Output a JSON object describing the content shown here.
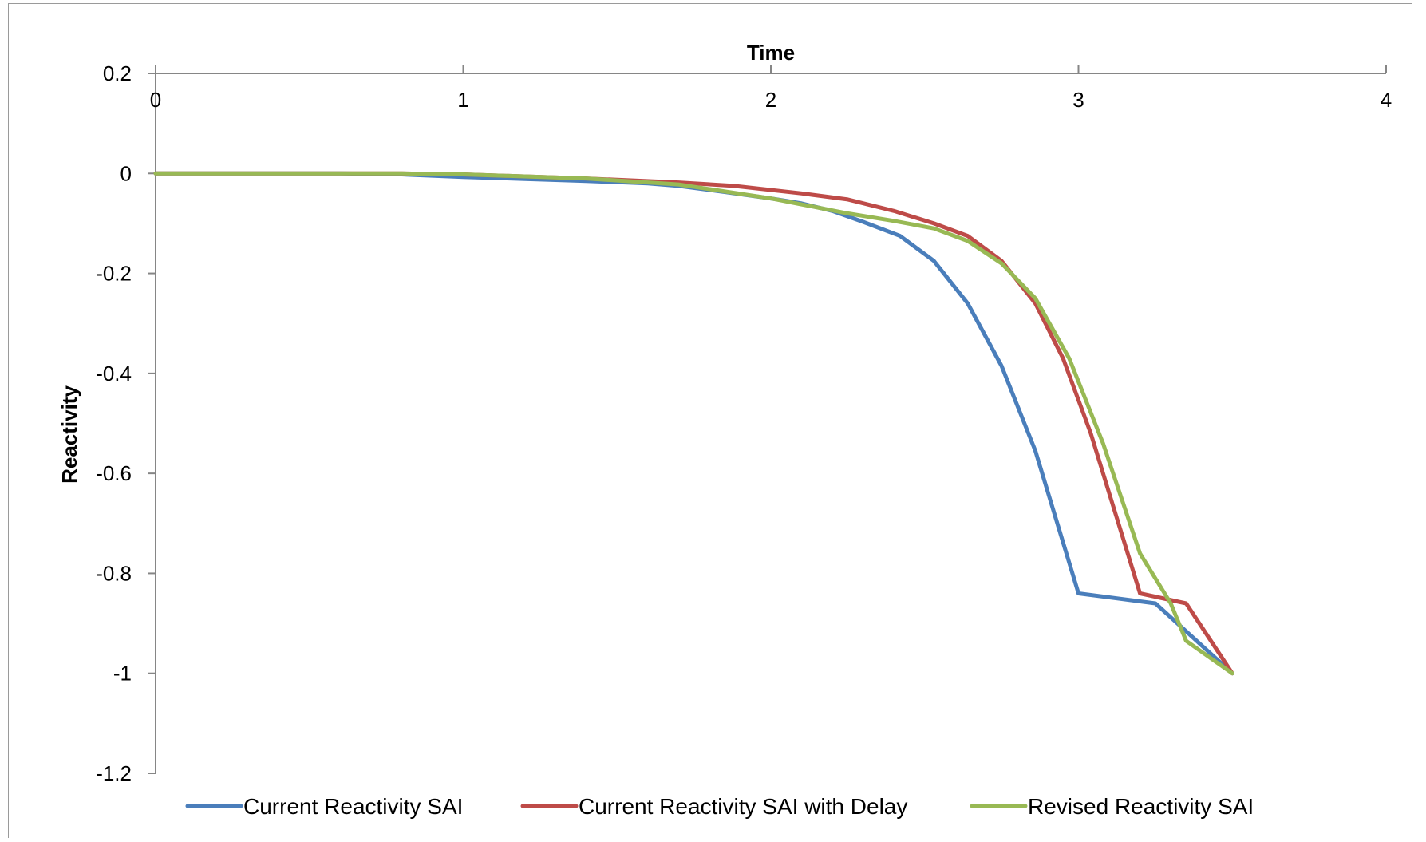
{
  "chart_data": {
    "type": "line",
    "title": "",
    "xlabel": "Time",
    "ylabel": "Reactivity",
    "xlim": [
      0,
      4
    ],
    "ylim": [
      -1.2,
      0.2
    ],
    "x_ticks": [
      0,
      1,
      2,
      3,
      4
    ],
    "y_ticks": [
      0.2,
      0,
      -0.2,
      -0.4,
      -0.6,
      -0.8,
      -1,
      -1.2
    ],
    "x_axis_position": "top",
    "grid": false,
    "legend_position": "bottom",
    "series": [
      {
        "name": "Current Reactivity SAI",
        "color": "#4a7ebb",
        "x": [
          0,
          0.6,
          0.8,
          1.0,
          1.2,
          1.4,
          1.6,
          1.7,
          1.85,
          2.0,
          2.1,
          2.2,
          2.3,
          2.42,
          2.53,
          2.64,
          2.75,
          2.86,
          3.0,
          3.25,
          3.5
        ],
        "y": [
          0,
          0,
          -0.002,
          -0.007,
          -0.011,
          -0.015,
          -0.02,
          -0.025,
          -0.037,
          -0.05,
          -0.06,
          -0.075,
          -0.097,
          -0.125,
          -0.175,
          -0.26,
          -0.385,
          -0.555,
          -0.84,
          -0.86,
          -1.0
        ]
      },
      {
        "name": "Current Reactivity SAI with Delay",
        "color": "#be4b48",
        "x": [
          0,
          0.8,
          1.0,
          1.4,
          1.7,
          1.88,
          2.1,
          2.25,
          2.4,
          2.53,
          2.64,
          2.75,
          2.86,
          2.95,
          3.04,
          3.2,
          3.35,
          3.5
        ],
        "y": [
          0,
          0,
          -0.002,
          -0.01,
          -0.018,
          -0.025,
          -0.04,
          -0.052,
          -0.075,
          -0.1,
          -0.125,
          -0.175,
          -0.26,
          -0.37,
          -0.52,
          -0.84,
          -0.86,
          -1.0
        ]
      },
      {
        "name": "Revised Reactivity SAI",
        "color": "#98b954",
        "x": [
          0,
          0.8,
          1.0,
          1.4,
          1.7,
          2.0,
          2.25,
          2.4,
          2.53,
          2.64,
          2.75,
          2.86,
          2.97,
          3.08,
          3.2,
          3.3,
          3.35,
          3.5
        ],
        "y": [
          0,
          0,
          -0.002,
          -0.01,
          -0.022,
          -0.05,
          -0.08,
          -0.095,
          -0.11,
          -0.135,
          -0.18,
          -0.25,
          -0.37,
          -0.54,
          -0.76,
          -0.86,
          -0.935,
          -1.0
        ]
      }
    ]
  }
}
